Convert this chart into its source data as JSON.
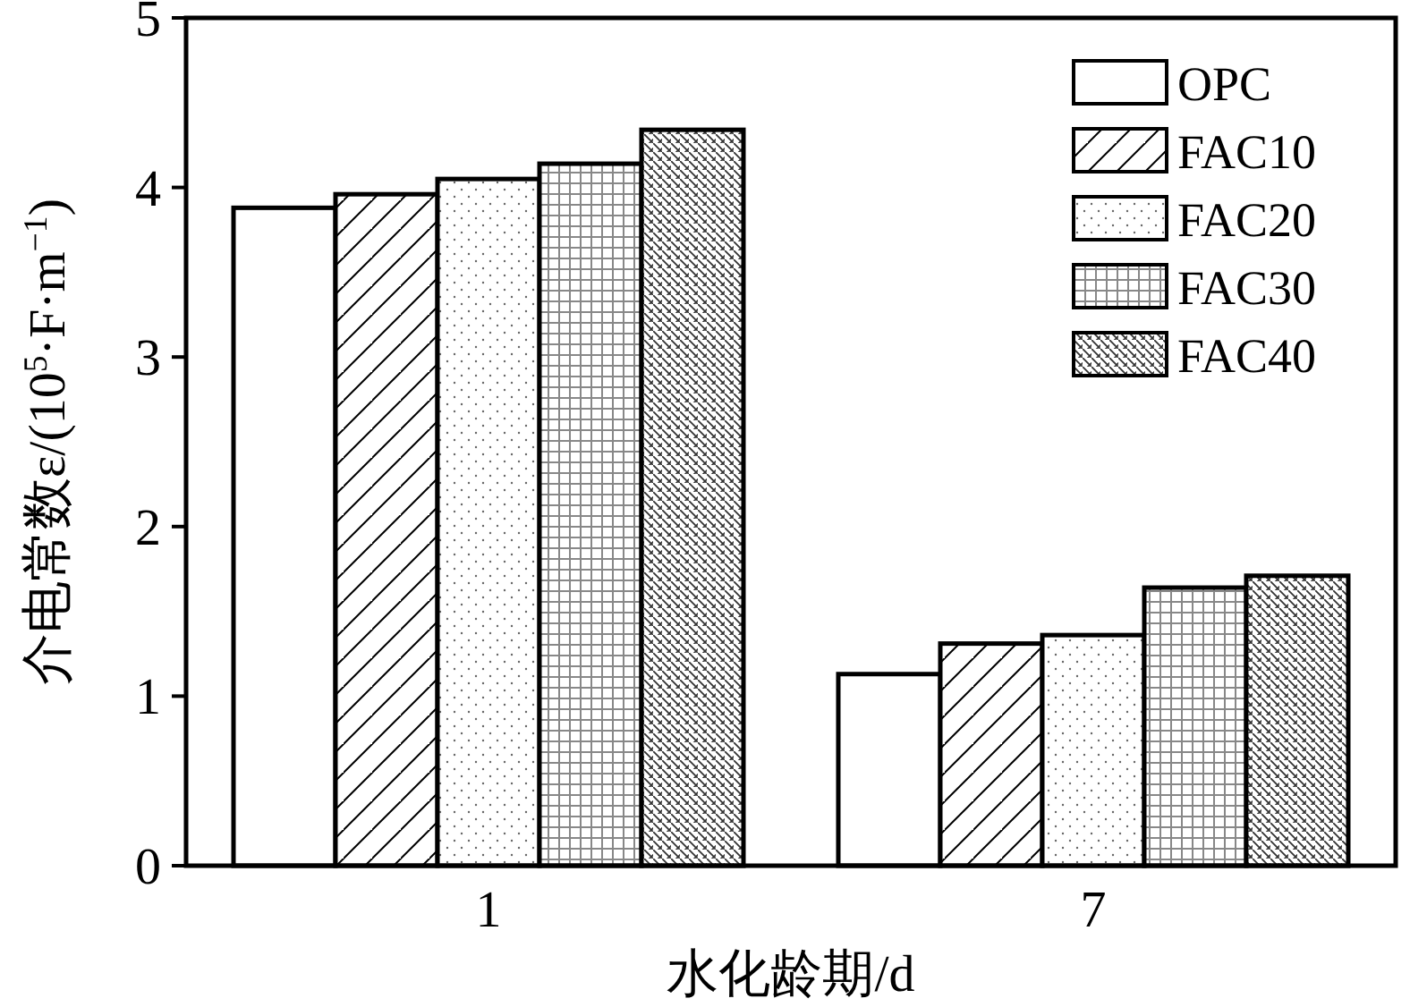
{
  "chart_data": {
    "type": "bar",
    "xlabel": "水化龄期/d",
    "ylabel": "介电常数ε/(10$^{5}$·F·m$^{−1}$)",
    "categories": [
      "1",
      "7"
    ],
    "series": [
      {
        "name": "OPC",
        "color": "#000000",
        "values": [
          3.88,
          1.13
        ]
      },
      {
        "name": "FAC10",
        "color": "#000000",
        "values": [
          3.96,
          1.31
        ]
      },
      {
        "name": "FAC20",
        "color": "#000000",
        "values": [
          4.05,
          1.36
        ]
      },
      {
        "name": "FAC30",
        "color": "#000000",
        "values": [
          4.14,
          1.64
        ]
      },
      {
        "name": "FAC40",
        "color": "#000000",
        "values": [
          4.34,
          1.71
        ]
      }
    ],
    "ylim": [
      0,
      5
    ],
    "yticks": [
      0,
      1,
      2,
      3,
      4,
      5
    ],
    "legend": "top right",
    "grid": false
  }
}
